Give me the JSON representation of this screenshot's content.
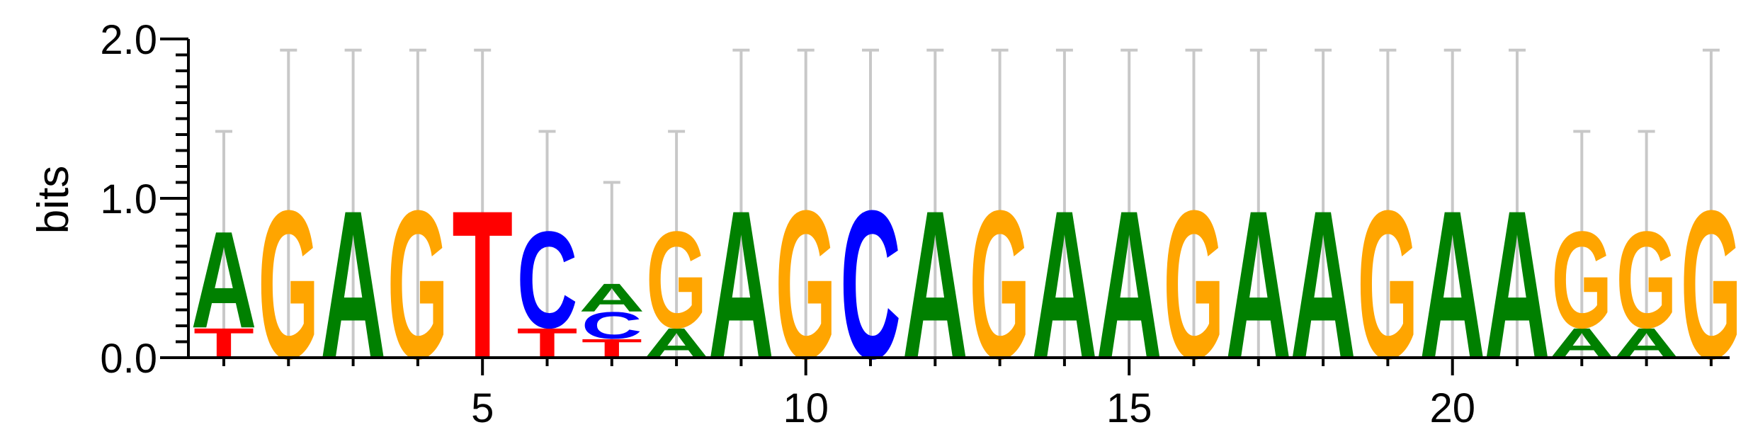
{
  "chart_data": {
    "type": "sequence-logo",
    "title": "",
    "xlabel": "",
    "ylabel": "bits",
    "ylim": [
      0,
      2.0
    ],
    "y_ticks": [
      "0.0",
      "1.0",
      "2.0"
    ],
    "x_ticks": [
      5,
      10,
      15,
      20
    ],
    "error_bars": true,
    "colors": {
      "A": "#008000",
      "C": "#0000ff",
      "G": "#ffa500",
      "T": "#ff0000",
      "errorbar": "#c8c8c8",
      "axis": "#000000"
    },
    "positions": [
      {
        "pos": 1,
        "letters": [
          {
            "l": "T",
            "h": 0.19
          },
          {
            "l": "A",
            "h": 0.62
          }
        ],
        "err": 1.42
      },
      {
        "pos": 2,
        "letters": [
          {
            "l": "G",
            "h": 0.95
          }
        ],
        "err": 1.93
      },
      {
        "pos": 3,
        "letters": [
          {
            "l": "A",
            "h": 0.95
          }
        ],
        "err": 1.93
      },
      {
        "pos": 4,
        "letters": [
          {
            "l": "G",
            "h": 0.95
          }
        ],
        "err": 1.93
      },
      {
        "pos": 5,
        "letters": [
          {
            "l": "T",
            "h": 0.95
          }
        ],
        "err": 1.93
      },
      {
        "pos": 6,
        "letters": [
          {
            "l": "T",
            "h": 0.19
          },
          {
            "l": "C",
            "h": 0.62
          }
        ],
        "err": 1.42
      },
      {
        "pos": 7,
        "letters": [
          {
            "l": "T",
            "h": 0.12
          },
          {
            "l": "C",
            "h": 0.17
          },
          {
            "l": "A",
            "h": 0.18
          }
        ],
        "err": 1.1
      },
      {
        "pos": 8,
        "letters": [
          {
            "l": "A",
            "h": 0.19
          },
          {
            "l": "G",
            "h": 0.62
          }
        ],
        "err": 1.42
      },
      {
        "pos": 9,
        "letters": [
          {
            "l": "A",
            "h": 0.95
          }
        ],
        "err": 1.93
      },
      {
        "pos": 10,
        "letters": [
          {
            "l": "G",
            "h": 0.95
          }
        ],
        "err": 1.93
      },
      {
        "pos": 11,
        "letters": [
          {
            "l": "C",
            "h": 0.95
          }
        ],
        "err": 1.93
      },
      {
        "pos": 12,
        "letters": [
          {
            "l": "A",
            "h": 0.95
          }
        ],
        "err": 1.93
      },
      {
        "pos": 13,
        "letters": [
          {
            "l": "G",
            "h": 0.95
          }
        ],
        "err": 1.93
      },
      {
        "pos": 14,
        "letters": [
          {
            "l": "A",
            "h": 0.95
          }
        ],
        "err": 1.93
      },
      {
        "pos": 15,
        "letters": [
          {
            "l": "A",
            "h": 0.95
          }
        ],
        "err": 1.93
      },
      {
        "pos": 16,
        "letters": [
          {
            "l": "G",
            "h": 0.95
          }
        ],
        "err": 1.93
      },
      {
        "pos": 17,
        "letters": [
          {
            "l": "A",
            "h": 0.95
          }
        ],
        "err": 1.93
      },
      {
        "pos": 18,
        "letters": [
          {
            "l": "A",
            "h": 0.95
          }
        ],
        "err": 1.93
      },
      {
        "pos": 19,
        "letters": [
          {
            "l": "G",
            "h": 0.95
          }
        ],
        "err": 1.93
      },
      {
        "pos": 20,
        "letters": [
          {
            "l": "A",
            "h": 0.95
          }
        ],
        "err": 1.93
      },
      {
        "pos": 21,
        "letters": [
          {
            "l": "A",
            "h": 0.95
          }
        ],
        "err": 1.93
      },
      {
        "pos": 22,
        "letters": [
          {
            "l": "A",
            "h": 0.19
          },
          {
            "l": "G",
            "h": 0.62
          }
        ],
        "err": 1.42
      },
      {
        "pos": 23,
        "letters": [
          {
            "l": "A",
            "h": 0.19
          },
          {
            "l": "G",
            "h": 0.62
          }
        ],
        "err": 1.42
      },
      {
        "pos": 24,
        "letters": [
          {
            "l": "G",
            "h": 0.95
          }
        ],
        "err": 1.93
      }
    ]
  }
}
